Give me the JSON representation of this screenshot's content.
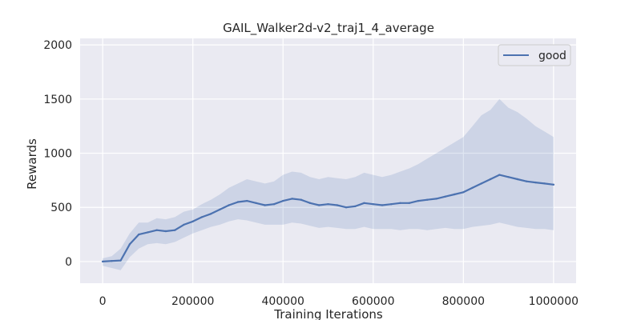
{
  "chart_data": {
    "type": "line",
    "title": "GAIL_Walker2d-v2_traj1_4_average",
    "xlabel": "Training Iterations",
    "ylabel": "Rewards",
    "xlim": [
      -50000,
      1050000
    ],
    "ylim": [
      -200,
      2060
    ],
    "xticks": [
      0,
      200000,
      400000,
      600000,
      800000,
      1000000
    ],
    "xtick_labels": [
      "0",
      "200000",
      "400000",
      "600000",
      "800000",
      "1000000"
    ],
    "yticks": [
      0,
      500,
      1000,
      1500,
      2000
    ],
    "ytick_labels": [
      "0",
      "500",
      "1000",
      "1500",
      "2000"
    ],
    "grid": true,
    "legend_position": "top-right",
    "series": [
      {
        "name": "good",
        "color": "#4c72b0",
        "band": "std-shaded",
        "x": [
          0,
          20000,
          40000,
          60000,
          80000,
          100000,
          120000,
          140000,
          160000,
          180000,
          200000,
          220000,
          240000,
          260000,
          280000,
          300000,
          320000,
          340000,
          360000,
          380000,
          400000,
          420000,
          440000,
          460000,
          480000,
          500000,
          520000,
          540000,
          560000,
          580000,
          600000,
          620000,
          640000,
          660000,
          680000,
          700000,
          720000,
          740000,
          760000,
          780000,
          800000,
          820000,
          840000,
          860000,
          880000,
          900000,
          920000,
          940000,
          960000,
          980000,
          1000000
        ],
        "values": [
          0,
          5,
          10,
          160,
          250,
          270,
          290,
          280,
          290,
          340,
          370,
          410,
          440,
          480,
          520,
          550,
          560,
          540,
          520,
          530,
          560,
          580,
          570,
          540,
          520,
          530,
          520,
          500,
          510,
          540,
          530,
          520,
          530,
          540,
          540,
          560,
          570,
          580,
          600,
          620,
          640,
          680,
          720,
          760,
          800,
          780,
          760,
          740,
          730,
          720,
          710
        ],
        "lower": [
          -40,
          -60,
          -80,
          40,
          120,
          160,
          170,
          160,
          180,
          220,
          260,
          290,
          320,
          340,
          370,
          390,
          380,
          360,
          340,
          340,
          340,
          360,
          350,
          330,
          310,
          320,
          310,
          300,
          300,
          320,
          300,
          300,
          300,
          290,
          300,
          300,
          290,
          300,
          310,
          300,
          300,
          320,
          330,
          340,
          360,
          340,
          320,
          310,
          300,
          300,
          290
        ],
        "upper": [
          30,
          50,
          120,
          260,
          360,
          360,
          400,
          390,
          410,
          460,
          480,
          530,
          570,
          620,
          680,
          720,
          760,
          740,
          720,
          740,
          800,
          830,
          820,
          780,
          760,
          780,
          770,
          760,
          780,
          820,
          800,
          780,
          800,
          830,
          860,
          900,
          950,
          1000,
          1050,
          1100,
          1150,
          1250,
          1350,
          1400,
          1500,
          1420,
          1380,
          1320,
          1250,
          1200,
          1150
        ]
      }
    ]
  }
}
